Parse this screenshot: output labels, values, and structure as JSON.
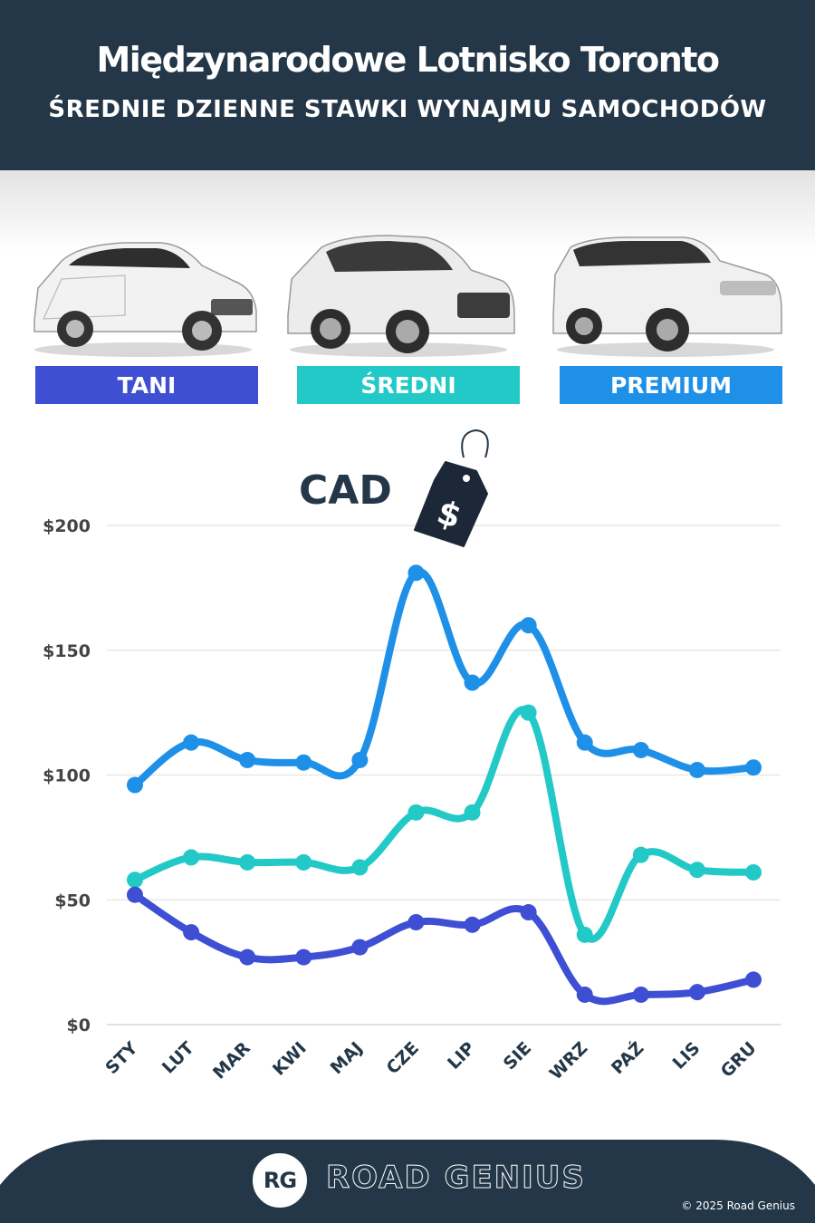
{
  "header": {
    "title": "Międzynarodowe Lotnisko Toronto",
    "subtitle": "ŚREDNIE DZIENNE STAWKI WYNAJMU SAMOCHODÓW"
  },
  "categories_legend": [
    {
      "label": "TANI",
      "color": "#3f4fd4"
    },
    {
      "label": "ŚREDNI",
      "color": "#22c9c6"
    },
    {
      "label": "PREMIUM",
      "color": "#1e90e8"
    }
  ],
  "currency_label": "CAD",
  "price_tag_symbol": "$",
  "chart_data": {
    "type": "line",
    "categories": [
      "STY",
      "LUT",
      "MAR",
      "KWI",
      "MAJ",
      "CZE",
      "LIP",
      "SIE",
      "WRZ",
      "PAŹ",
      "LIS",
      "GRU"
    ],
    "series": [
      {
        "name": "PREMIUM",
        "color": "#1e90e8",
        "values": [
          96,
          113,
          106,
          105,
          106,
          181,
          137,
          160,
          113,
          110,
          102,
          103
        ]
      },
      {
        "name": "ŚREDNI",
        "color": "#22c9c6",
        "values": [
          58,
          67,
          65,
          65,
          63,
          85,
          85,
          125,
          36,
          68,
          62,
          61
        ]
      },
      {
        "name": "TANI",
        "color": "#3f4fd4",
        "values": [
          52,
          37,
          27,
          27,
          31,
          41,
          40,
          45,
          12,
          12,
          13,
          18
        ]
      }
    ],
    "y_ticks": [
      "$0",
      "$50",
      "$100",
      "$150",
      "$200"
    ],
    "y_tick_values": [
      0,
      50,
      100,
      150,
      200
    ],
    "ylim": [
      0,
      200
    ],
    "grid": true
  },
  "footer": {
    "logo_initials": "RG",
    "brand": "ROAD GENIUS",
    "copyright": "© 2025 Road Genius",
    "background": "#233748"
  }
}
